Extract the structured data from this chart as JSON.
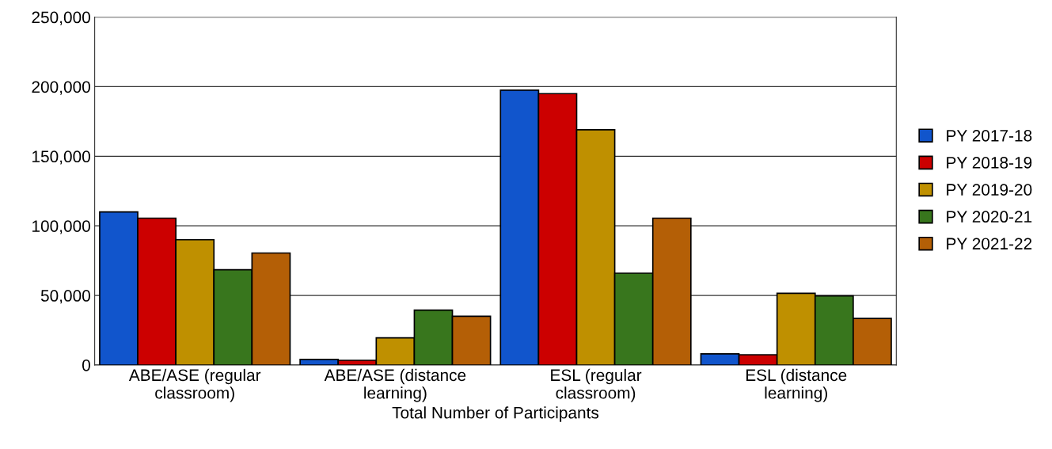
{
  "chart_data": {
    "type": "bar",
    "xlabel": "Total Number of Participants",
    "categories": [
      "ABE/ASE (regular\nclassroom)",
      "ABE/ASE (distance\nlearning)",
      "ESL (regular\nclassroom)",
      "ESL (distance\nlearning)"
    ],
    "series": [
      {
        "name": "PY 2017-18",
        "color": "#1155cc",
        "values": [
          110000,
          4000,
          197500,
          8000
        ]
      },
      {
        "name": "PY 2018-19",
        "color": "#cc0000",
        "values": [
          105500,
          3400,
          195000,
          7400
        ]
      },
      {
        "name": "PY 2019-20",
        "color": "#bf9000",
        "values": [
          90000,
          19500,
          169000,
          51500
        ]
      },
      {
        "name": "PY 2020-21",
        "color": "#38761d",
        "values": [
          68500,
          39500,
          66000,
          49700
        ]
      },
      {
        "name": "PY 2021-22",
        "color": "#b45f06",
        "values": [
          80500,
          35000,
          105500,
          33500
        ]
      }
    ],
    "ylim": [
      0,
      250000
    ],
    "yticks": [
      {
        "value": 0,
        "label": "0"
      },
      {
        "value": 50000,
        "label": "50,000"
      },
      {
        "value": 100000,
        "label": "100,000"
      },
      {
        "value": 150000,
        "label": "150,000"
      },
      {
        "value": 200000,
        "label": "200,000"
      },
      {
        "value": 250000,
        "label": "250,000"
      }
    ],
    "grid": "y",
    "legend": "right"
  }
}
